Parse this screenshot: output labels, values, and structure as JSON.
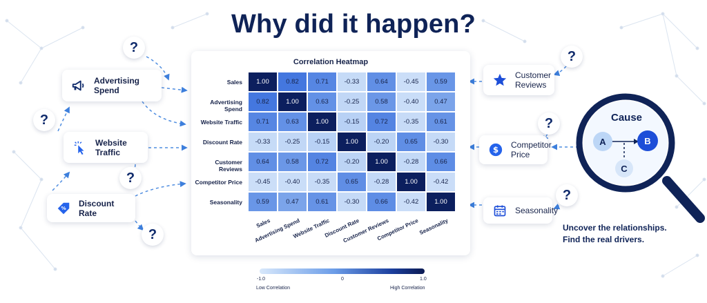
{
  "title": "Why did it happen?",
  "heatmap": {
    "title": "Correlation Heatmap",
    "variables": [
      "Sales",
      "Advertising Spend",
      "Website Traffic",
      "Discount Rate",
      "Customer Reviews",
      "Competitor Price",
      "Seasonality"
    ],
    "matrix": [
      [
        "1.00",
        "0.82",
        "0.71",
        "-0.33",
        "0.64",
        "-0.45",
        "0.59"
      ],
      [
        "0.82",
        "1.00",
        "0.63",
        "-0.25",
        "0.58",
        "-0.40",
        "0.47"
      ],
      [
        "0.71",
        "0.63",
        "1.00",
        "-0.15",
        "0.72",
        "-0.35",
        "0.61"
      ],
      [
        "-0.33",
        "-0.25",
        "-0.15",
        "1.00",
        "-0.20",
        "0.65",
        "-0.30"
      ],
      [
        "0.64",
        "0.58",
        "0.72",
        "-0.20",
        "1.00",
        "-0.28",
        "0.66"
      ],
      [
        "-0.45",
        "-0.40",
        "-0.35",
        "0.65",
        "-0.28",
        "1.00",
        "-0.42"
      ],
      [
        "0.59",
        "0.47",
        "0.61",
        "-0.30",
        "0.66",
        "-0.42",
        "1.00"
      ]
    ],
    "legend": {
      "min": "-1.0",
      "mid": "0",
      "max": "1.0",
      "low_label": "Low Correlation",
      "high_label": "High Correlation"
    }
  },
  "chart_data": {
    "type": "heatmap",
    "title": "Correlation Heatmap",
    "x": [
      "Sales",
      "Advertising Spend",
      "Website Traffic",
      "Discount Rate",
      "Customer Reviews",
      "Competitor Price",
      "Seasonality"
    ],
    "y": [
      "Sales",
      "Advertising Spend",
      "Website Traffic",
      "Discount Rate",
      "Customer Reviews",
      "Competitor Price",
      "Seasonality"
    ],
    "values": [
      [
        1.0,
        0.82,
        0.71,
        -0.33,
        0.64,
        -0.45,
        0.59
      ],
      [
        0.82,
        1.0,
        0.63,
        -0.25,
        0.58,
        -0.4,
        0.47
      ],
      [
        0.71,
        0.63,
        1.0,
        -0.15,
        0.72,
        -0.35,
        0.61
      ],
      [
        -0.33,
        -0.25,
        -0.15,
        1.0,
        -0.2,
        0.65,
        -0.3
      ],
      [
        0.64,
        0.58,
        0.72,
        -0.2,
        1.0,
        -0.28,
        0.66
      ],
      [
        -0.45,
        -0.4,
        -0.35,
        0.65,
        -0.28,
        1.0,
        -0.42
      ],
      [
        0.59,
        0.47,
        0.61,
        -0.3,
        0.66,
        -0.42,
        1.0
      ]
    ],
    "colorbar_range": [
      -1.0,
      1.0
    ]
  },
  "factors_left": [
    {
      "label": "Advertising Spend",
      "icon": "megaphone-icon"
    },
    {
      "label": "Website Traffic",
      "icon": "cursor-click-icon"
    },
    {
      "label": "Discount Rate",
      "icon": "discount-tag-icon"
    }
  ],
  "factors_right": [
    {
      "label": "Customer Reviews",
      "icon": "star-icon"
    },
    {
      "label": "Competitor Price",
      "icon": "dollar-icon"
    },
    {
      "label": "Seasonality",
      "icon": "calendar-icon"
    }
  ],
  "question_mark": "?",
  "cause": {
    "title": "Cause",
    "node_a": "A",
    "node_b": "B",
    "node_c": "C"
  },
  "caption": {
    "line1": "Uncover the relationships.",
    "line2": "Find the real drivers."
  },
  "colors": {
    "navy": "#0f2357",
    "accent_blue": "#2563eb",
    "dash_blue": "#4f8de0"
  }
}
